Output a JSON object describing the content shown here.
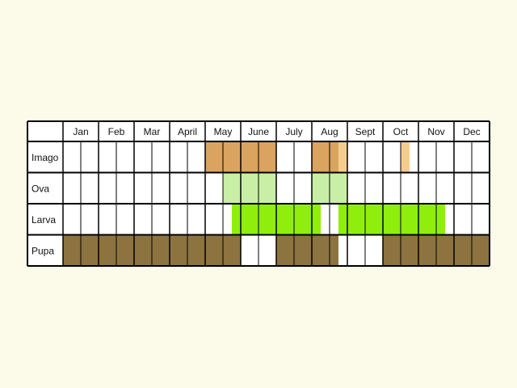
{
  "chart_data": {
    "type": "table",
    "months": [
      "Jan",
      "Feb",
      "Mar",
      "April",
      "May",
      "June",
      "July",
      "Aug",
      "Sept",
      "Oct",
      "Nov",
      "Dec"
    ],
    "stages": [
      {
        "name": "Imago",
        "segments": [
          {
            "start": 4.0,
            "end": 6.0,
            "color": "#daa35f"
          },
          {
            "start": 7.0,
            "end": 7.75,
            "color": "#daa35f"
          },
          {
            "start": 7.75,
            "end": 8.0,
            "color": "#f5cc8f"
          },
          {
            "start": 9.5,
            "end": 9.75,
            "color": "#f5cc8f"
          }
        ]
      },
      {
        "name": "Ova",
        "segments": [
          {
            "start": 4.5,
            "end": 6.0,
            "color": "#c9efa6"
          },
          {
            "start": 7.0,
            "end": 8.0,
            "color": "#c9efa6"
          }
        ]
      },
      {
        "name": "Larva",
        "segments": [
          {
            "start": 4.75,
            "end": 7.25,
            "color": "#8fee0c"
          },
          {
            "start": 7.75,
            "end": 10.75,
            "color": "#8fee0c"
          }
        ]
      },
      {
        "name": "Pupa",
        "segments": [
          {
            "start": 0.0,
            "end": 5.0,
            "color": "#8d7340"
          },
          {
            "start": 6.0,
            "end": 7.75,
            "color": "#8d7340"
          },
          {
            "start": 9.0,
            "end": 12.0,
            "color": "#8d7340"
          }
        ]
      }
    ]
  }
}
